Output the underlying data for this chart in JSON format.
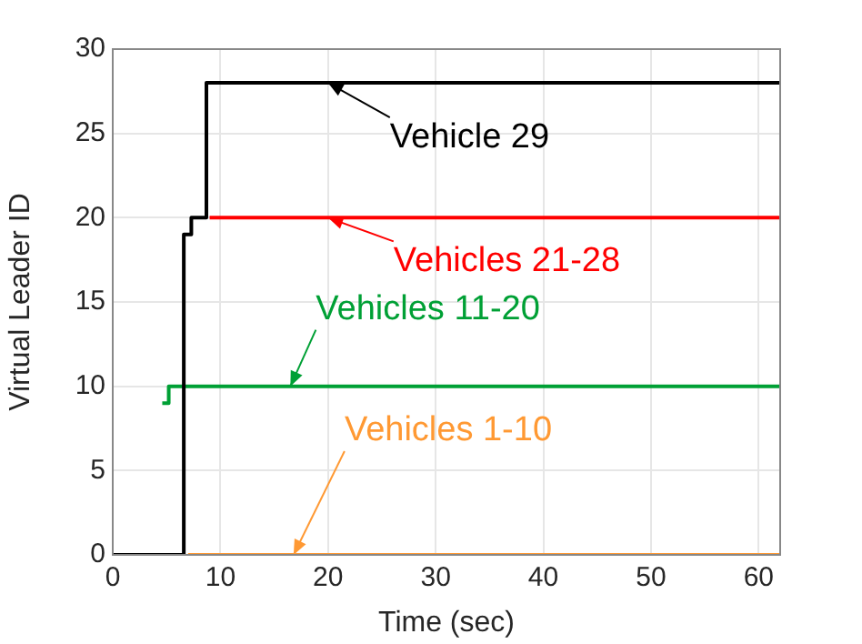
{
  "chart_data": {
    "type": "step",
    "xlabel": "Time (sec)",
    "ylabel": "Virtual Leader ID",
    "xlim": [
      0,
      62
    ],
    "ylim": [
      0,
      30
    ],
    "xticks": [
      0,
      10,
      20,
      30,
      40,
      50,
      60
    ],
    "yticks": [
      0,
      5,
      10,
      15,
      20,
      25,
      30
    ],
    "grid": true,
    "marker": "none",
    "line_style": "solid",
    "annotations": [
      {
        "text": "Vehicles 1-10",
        "x": 16.8,
        "y": 0
      },
      {
        "text": "Vehicles 11-20",
        "x": 16.5,
        "y": 10
      },
      {
        "text": "Vehicles 21-28",
        "x": 20,
        "y": 20
      },
      {
        "text": "Vehicle 29",
        "x": 20,
        "y": 28
      }
    ],
    "series": [
      {
        "color": "#ff9933",
        "x": [
          7,
          62
        ],
        "values": [
          0,
          0
        ]
      },
      {
        "color": "#00a035",
        "x": [
          4.6,
          5.2,
          62
        ],
        "values": [
          9,
          10,
          10
        ]
      },
      {
        "color": "#ff0000",
        "x": [
          9,
          62
        ],
        "values": [
          20,
          20
        ]
      },
      {
        "color": "#000000",
        "x": [
          0,
          6.6,
          7.3,
          8.7,
          62
        ],
        "values": [
          0,
          19,
          20,
          28,
          28
        ]
      }
    ]
  }
}
